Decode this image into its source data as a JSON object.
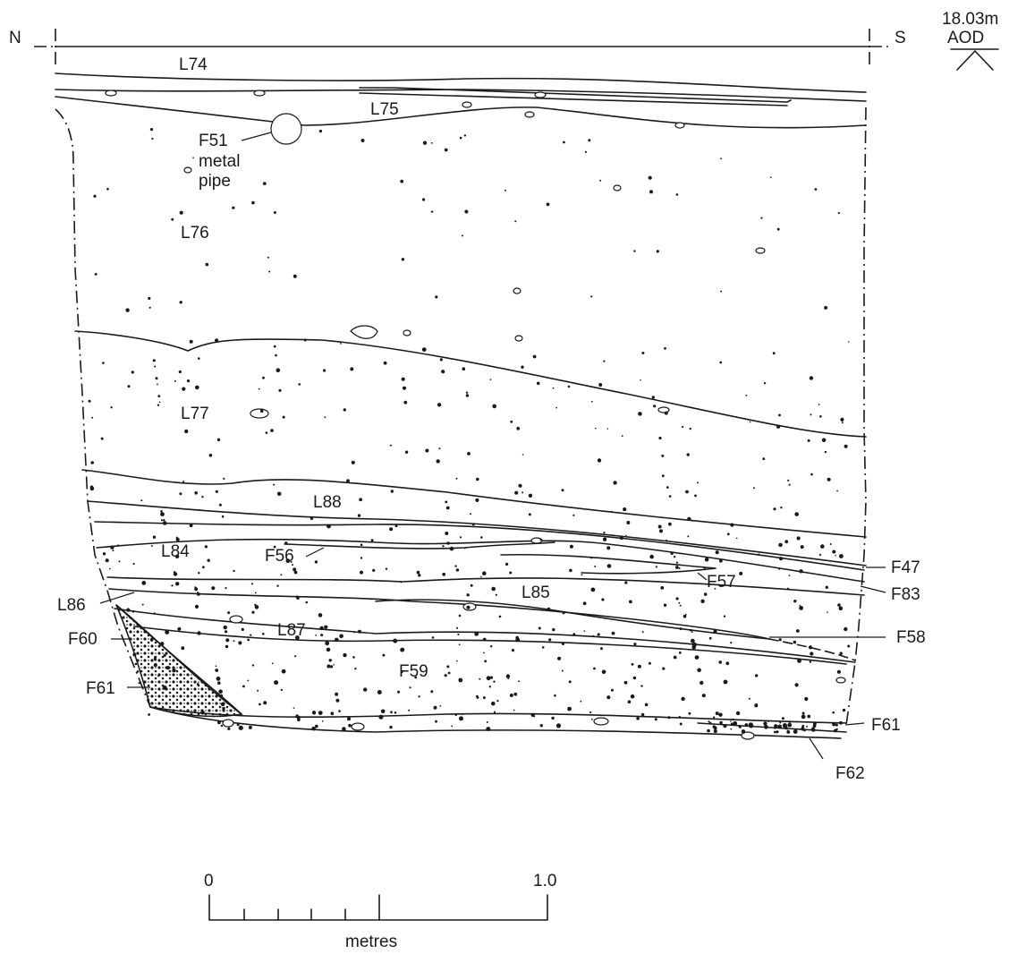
{
  "orientation": {
    "north": "N",
    "south": "S"
  },
  "datum": {
    "height": "18.03m",
    "unit": "AOD"
  },
  "labels": {
    "L74": "L74",
    "L75": "L75",
    "F51_code": "F51",
    "F51_desc1": "metal",
    "F51_desc2": "pipe",
    "L76": "L76",
    "L77": "L77",
    "L88": "L88",
    "L84": "L84",
    "F56": "F56",
    "F47": "F47",
    "F83": "F83",
    "F57": "F57",
    "L85": "L85",
    "L86": "L86",
    "L87": "L87",
    "F58": "F58",
    "F60": "F60",
    "F59": "F59",
    "F61_left": "F61",
    "F61_right": "F61",
    "F62": "F62"
  },
  "scale_bar": {
    "start": "0",
    "end": "1.0",
    "unit": "metres"
  }
}
